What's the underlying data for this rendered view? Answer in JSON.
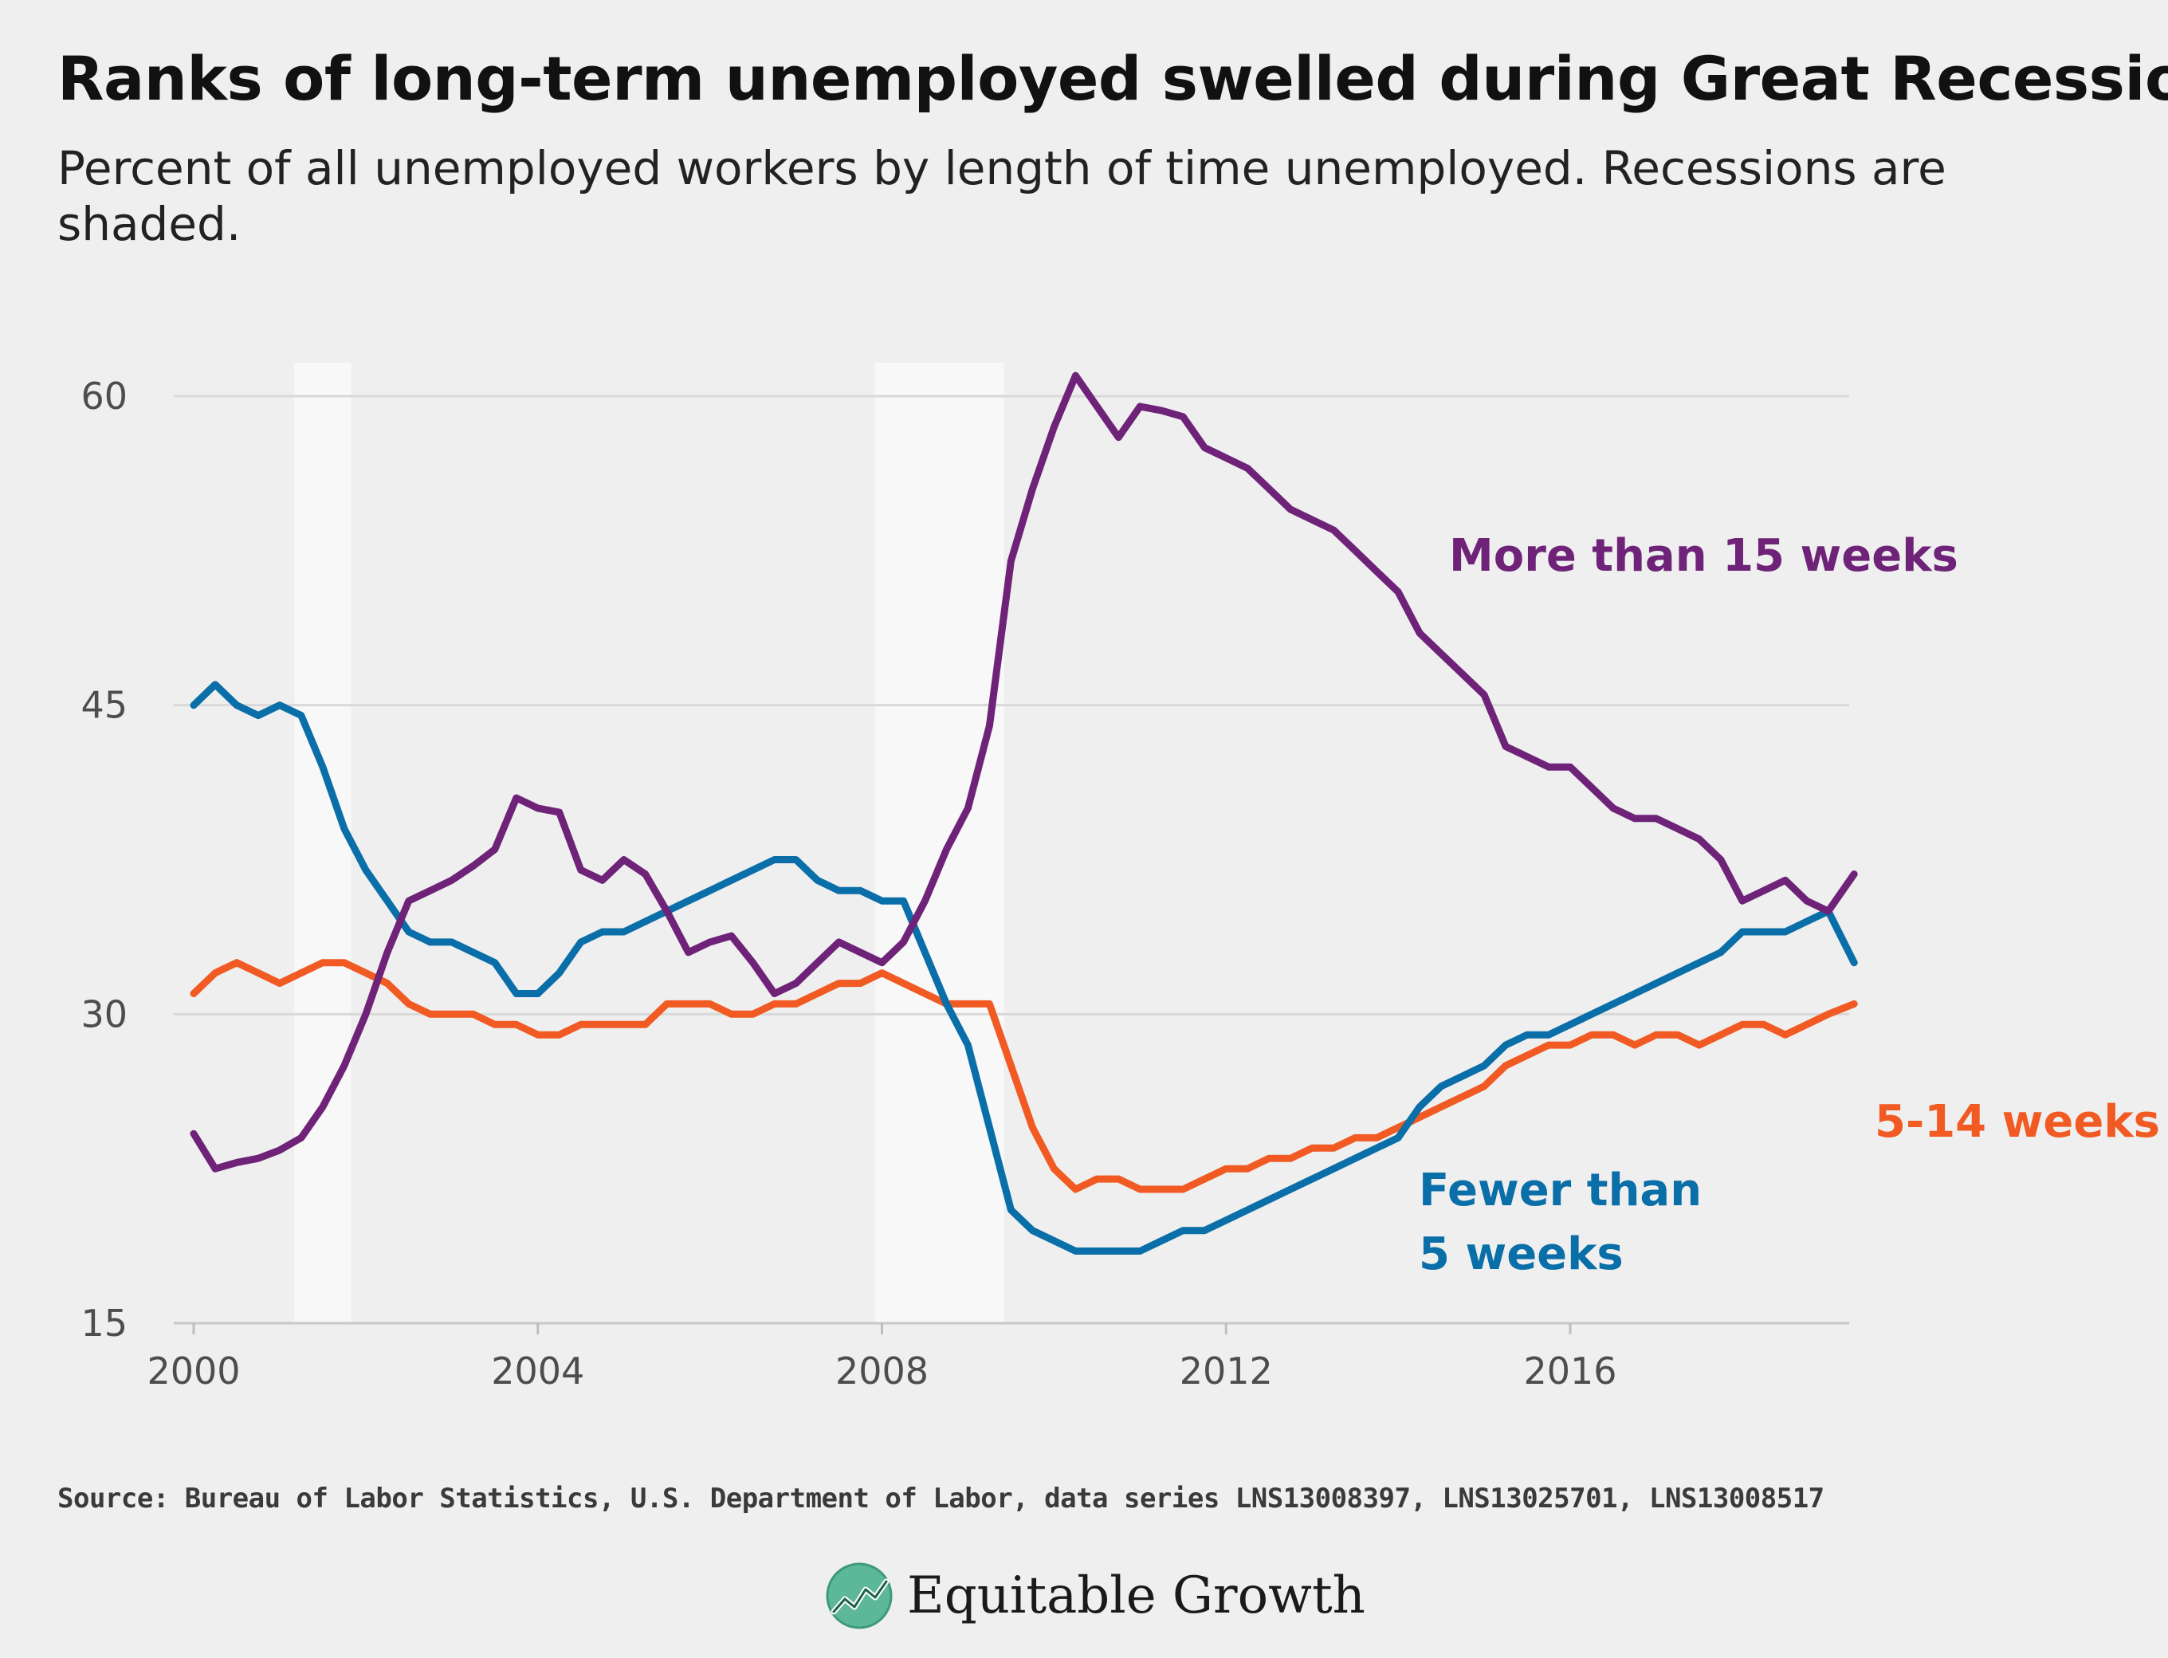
{
  "title": "Ranks of long-term unemployed swelled during Great Recession",
  "subtitle": "Percent of all unemployed workers by length of time unemployed. Recessions are shaded.",
  "source": "Source: Bureau of Labor Statistics, U.S. Department of Labor, data series LNS13008397, LNS13025701, LNS13008517",
  "brand": "Equitable Growth",
  "colors": {
    "background": "#efefef",
    "grid": "#d9d9d9",
    "recession": "#f8f8f8",
    "more_than_15": "#6f2378",
    "fewer_than_5": "#0a6ea8",
    "five_to_14": "#f15a22",
    "logo": "#5cb898"
  },
  "chart_data": {
    "type": "line",
    "title": "Ranks of long-term unemployed swelled during Great Recession",
    "xlabel": "",
    "ylabel": "",
    "xlim": [
      2000,
      2019.3
    ],
    "ylim": [
      15,
      62
    ],
    "x_ticks": [
      2000,
      2004,
      2008,
      2012,
      2016
    ],
    "y_ticks": [
      15,
      30,
      45,
      60
    ],
    "grid": true,
    "recessions": [
      [
        2001.17,
        2001.83
      ],
      [
        2007.92,
        2009.42
      ]
    ],
    "series": [
      {
        "name": "More than 15 weeks",
        "color": "#6f2378",
        "points": [
          [
            2000.0,
            24.2
          ],
          [
            2000.25,
            22.5
          ],
          [
            2000.5,
            22.8
          ],
          [
            2000.75,
            23.0
          ],
          [
            2001.0,
            23.4
          ],
          [
            2001.25,
            24.0
          ],
          [
            2001.5,
            25.5
          ],
          [
            2001.75,
            27.5
          ],
          [
            2002.0,
            30.0
          ],
          [
            2002.25,
            33.0
          ],
          [
            2002.5,
            35.5
          ],
          [
            2002.75,
            36.0
          ],
          [
            2003.0,
            36.5
          ],
          [
            2003.25,
            37.2
          ],
          [
            2003.5,
            38.0
          ],
          [
            2003.75,
            40.5
          ],
          [
            2004.0,
            40.0
          ],
          [
            2004.25,
            39.8
          ],
          [
            2004.5,
            37.0
          ],
          [
            2004.75,
            36.5
          ],
          [
            2005.0,
            37.5
          ],
          [
            2005.25,
            36.8
          ],
          [
            2005.5,
            35.0
          ],
          [
            2005.75,
            33.0
          ],
          [
            2006.0,
            33.5
          ],
          [
            2006.25,
            33.8
          ],
          [
            2006.5,
            32.5
          ],
          [
            2006.75,
            31.0
          ],
          [
            2007.0,
            31.5
          ],
          [
            2007.25,
            32.5
          ],
          [
            2007.5,
            33.5
          ],
          [
            2007.75,
            33.0
          ],
          [
            2008.0,
            32.5
          ],
          [
            2008.25,
            33.5
          ],
          [
            2008.5,
            35.5
          ],
          [
            2008.75,
            38.0
          ],
          [
            2009.0,
            40.0
          ],
          [
            2009.25,
            44.0
          ],
          [
            2009.5,
            52.0
          ],
          [
            2009.75,
            55.5
          ],
          [
            2010.0,
            58.5
          ],
          [
            2010.25,
            61.0
          ],
          [
            2010.5,
            59.5
          ],
          [
            2010.75,
            58.0
          ],
          [
            2011.0,
            59.5
          ],
          [
            2011.25,
            59.3
          ],
          [
            2011.5,
            59.0
          ],
          [
            2011.75,
            57.5
          ],
          [
            2012.0,
            57.0
          ],
          [
            2012.25,
            56.5
          ],
          [
            2012.5,
            55.5
          ],
          [
            2012.75,
            54.5
          ],
          [
            2013.0,
            54.0
          ],
          [
            2013.25,
            53.5
          ],
          [
            2013.5,
            52.5
          ],
          [
            2013.75,
            51.5
          ],
          [
            2014.0,
            50.5
          ],
          [
            2014.25,
            48.5
          ],
          [
            2014.5,
            47.5
          ],
          [
            2014.75,
            46.5
          ],
          [
            2015.0,
            45.5
          ],
          [
            2015.25,
            43.0
          ],
          [
            2015.5,
            42.5
          ],
          [
            2015.75,
            42.0
          ],
          [
            2016.0,
            42.0
          ],
          [
            2016.25,
            41.0
          ],
          [
            2016.5,
            40.0
          ],
          [
            2016.75,
            39.5
          ],
          [
            2017.0,
            39.5
          ],
          [
            2017.25,
            39.0
          ],
          [
            2017.5,
            38.5
          ],
          [
            2017.75,
            37.5
          ],
          [
            2018.0,
            35.5
          ],
          [
            2018.25,
            36.0
          ],
          [
            2018.5,
            36.5
          ],
          [
            2018.75,
            35.5
          ],
          [
            2019.0,
            35.0
          ],
          [
            2019.3,
            36.8
          ]
        ]
      },
      {
        "name": "Fewer than 5 weeks",
        "color": "#0a6ea8",
        "points": [
          [
            2000.0,
            45.0
          ],
          [
            2000.25,
            46.0
          ],
          [
            2000.5,
            45.0
          ],
          [
            2000.75,
            44.5
          ],
          [
            2001.0,
            45.0
          ],
          [
            2001.25,
            44.5
          ],
          [
            2001.5,
            42.0
          ],
          [
            2001.75,
            39.0
          ],
          [
            2002.0,
            37.0
          ],
          [
            2002.25,
            35.5
          ],
          [
            2002.5,
            34.0
          ],
          [
            2002.75,
            33.5
          ],
          [
            2003.0,
            33.5
          ],
          [
            2003.25,
            33.0
          ],
          [
            2003.5,
            32.5
          ],
          [
            2003.75,
            31.0
          ],
          [
            2004.0,
            31.0
          ],
          [
            2004.25,
            32.0
          ],
          [
            2004.5,
            33.5
          ],
          [
            2004.75,
            34.0
          ],
          [
            2005.0,
            34.0
          ],
          [
            2005.25,
            34.5
          ],
          [
            2005.5,
            35.0
          ],
          [
            2005.75,
            35.5
          ],
          [
            2006.0,
            36.0
          ],
          [
            2006.25,
            36.5
          ],
          [
            2006.5,
            37.0
          ],
          [
            2006.75,
            37.5
          ],
          [
            2007.0,
            37.5
          ],
          [
            2007.25,
            36.5
          ],
          [
            2007.5,
            36.0
          ],
          [
            2007.75,
            36.0
          ],
          [
            2008.0,
            35.5
          ],
          [
            2008.25,
            35.5
          ],
          [
            2008.5,
            33.0
          ],
          [
            2008.75,
            30.5
          ],
          [
            2009.0,
            28.5
          ],
          [
            2009.25,
            24.5
          ],
          [
            2009.5,
            20.5
          ],
          [
            2009.75,
            19.5
          ],
          [
            2010.0,
            19.0
          ],
          [
            2010.25,
            18.5
          ],
          [
            2010.5,
            18.5
          ],
          [
            2010.75,
            18.5
          ],
          [
            2011.0,
            18.5
          ],
          [
            2011.25,
            19.0
          ],
          [
            2011.5,
            19.5
          ],
          [
            2011.75,
            19.5
          ],
          [
            2012.0,
            20.0
          ],
          [
            2012.25,
            20.5
          ],
          [
            2012.5,
            21.0
          ],
          [
            2012.75,
            21.5
          ],
          [
            2013.0,
            22.0
          ],
          [
            2013.25,
            22.5
          ],
          [
            2013.5,
            23.0
          ],
          [
            2013.75,
            23.5
          ],
          [
            2014.0,
            24.0
          ],
          [
            2014.25,
            25.5
          ],
          [
            2014.5,
            26.5
          ],
          [
            2014.75,
            27.0
          ],
          [
            2015.0,
            27.5
          ],
          [
            2015.25,
            28.5
          ],
          [
            2015.5,
            29.0
          ],
          [
            2015.75,
            29.0
          ],
          [
            2016.0,
            29.5
          ],
          [
            2016.25,
            30.0
          ],
          [
            2016.5,
            30.5
          ],
          [
            2016.75,
            31.0
          ],
          [
            2017.0,
            31.5
          ],
          [
            2017.25,
            32.0
          ],
          [
            2017.5,
            32.5
          ],
          [
            2017.75,
            33.0
          ],
          [
            2018.0,
            34.0
          ],
          [
            2018.25,
            34.0
          ],
          [
            2018.5,
            34.0
          ],
          [
            2018.75,
            34.5
          ],
          [
            2019.0,
            35.0
          ],
          [
            2019.3,
            32.5
          ]
        ]
      },
      {
        "name": "5-14 weeks",
        "color": "#f15a22",
        "points": [
          [
            2000.0,
            31.0
          ],
          [
            2000.25,
            32.0
          ],
          [
            2000.5,
            32.5
          ],
          [
            2000.75,
            32.0
          ],
          [
            2001.0,
            31.5
          ],
          [
            2001.25,
            32.0
          ],
          [
            2001.5,
            32.5
          ],
          [
            2001.75,
            32.5
          ],
          [
            2002.0,
            32.0
          ],
          [
            2002.25,
            31.5
          ],
          [
            2002.5,
            30.5
          ],
          [
            2002.75,
            30.0
          ],
          [
            2003.0,
            30.0
          ],
          [
            2003.25,
            30.0
          ],
          [
            2003.5,
            29.5
          ],
          [
            2003.75,
            29.5
          ],
          [
            2004.0,
            29.0
          ],
          [
            2004.25,
            29.0
          ],
          [
            2004.5,
            29.5
          ],
          [
            2004.75,
            29.5
          ],
          [
            2005.0,
            29.5
          ],
          [
            2005.25,
            29.5
          ],
          [
            2005.5,
            30.5
          ],
          [
            2005.75,
            30.5
          ],
          [
            2006.0,
            30.5
          ],
          [
            2006.25,
            30.0
          ],
          [
            2006.5,
            30.0
          ],
          [
            2006.75,
            30.5
          ],
          [
            2007.0,
            30.5
          ],
          [
            2007.25,
            31.0
          ],
          [
            2007.5,
            31.5
          ],
          [
            2007.75,
            31.5
          ],
          [
            2008.0,
            32.0
          ],
          [
            2008.25,
            31.5
          ],
          [
            2008.5,
            31.0
          ],
          [
            2008.75,
            30.5
          ],
          [
            2009.0,
            30.5
          ],
          [
            2009.25,
            30.5
          ],
          [
            2009.5,
            27.5
          ],
          [
            2009.75,
            24.5
          ],
          [
            2010.0,
            22.5
          ],
          [
            2010.25,
            21.5
          ],
          [
            2010.5,
            22.0
          ],
          [
            2010.75,
            22.0
          ],
          [
            2011.0,
            21.5
          ],
          [
            2011.25,
            21.5
          ],
          [
            2011.5,
            21.5
          ],
          [
            2011.75,
            22.0
          ],
          [
            2012.0,
            22.5
          ],
          [
            2012.25,
            22.5
          ],
          [
            2012.5,
            23.0
          ],
          [
            2012.75,
            23.0
          ],
          [
            2013.0,
            23.5
          ],
          [
            2013.25,
            23.5
          ],
          [
            2013.5,
            24.0
          ],
          [
            2013.75,
            24.0
          ],
          [
            2014.0,
            24.5
          ],
          [
            2014.25,
            25.0
          ],
          [
            2014.5,
            25.5
          ],
          [
            2014.75,
            26.0
          ],
          [
            2015.0,
            26.5
          ],
          [
            2015.25,
            27.5
          ],
          [
            2015.5,
            28.0
          ],
          [
            2015.75,
            28.5
          ],
          [
            2016.0,
            28.5
          ],
          [
            2016.25,
            29.0
          ],
          [
            2016.5,
            29.0
          ],
          [
            2016.75,
            28.5
          ],
          [
            2017.0,
            29.0
          ],
          [
            2017.25,
            29.0
          ],
          [
            2017.5,
            28.5
          ],
          [
            2017.75,
            29.0
          ],
          [
            2018.0,
            29.5
          ],
          [
            2018.25,
            29.5
          ],
          [
            2018.5,
            29.0
          ],
          [
            2018.75,
            29.5
          ],
          [
            2019.0,
            30.0
          ],
          [
            2019.3,
            30.5
          ]
        ]
      }
    ],
    "annotations": {
      "more_than_15": "More than 15 weeks",
      "fewer_than_5_line1": "Fewer than",
      "fewer_than_5_line2": "5 weeks",
      "five_to_14": "5-14 weeks"
    }
  }
}
